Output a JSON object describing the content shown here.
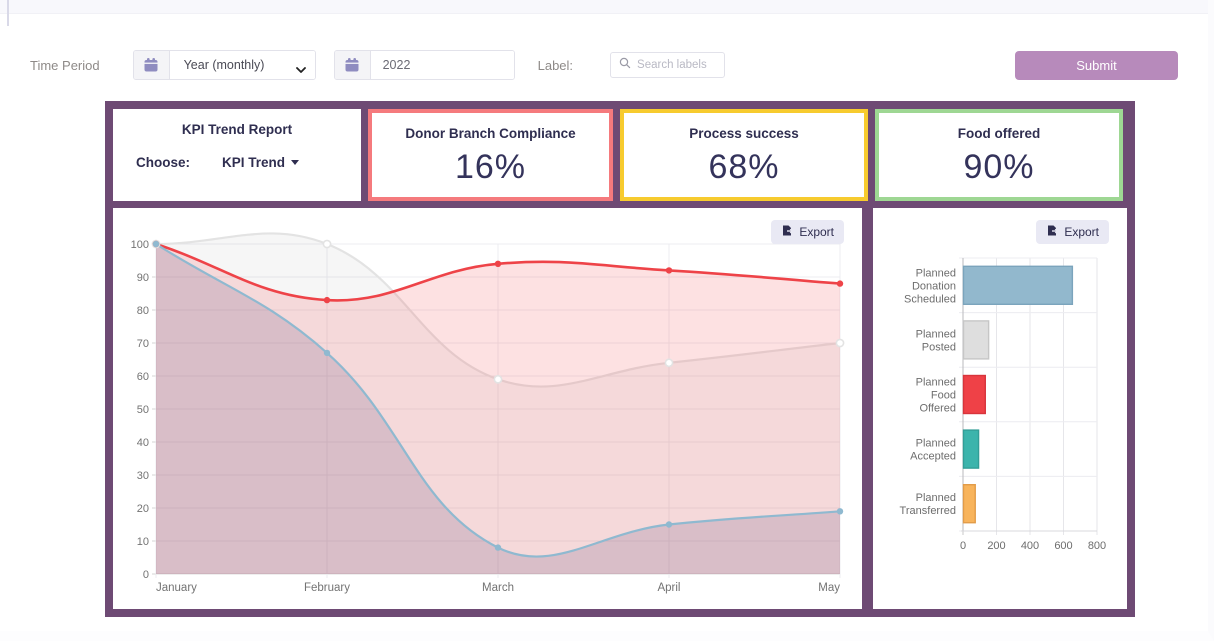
{
  "toolbar": {
    "time_period_label": "Time Period",
    "period_select": {
      "value": "Year (monthly)"
    },
    "year_input": {
      "value": "2022"
    },
    "label_text": "Label:",
    "search": {
      "placeholder": "Search labels"
    },
    "submit_label": "Submit"
  },
  "kpi": {
    "report_card": {
      "title": "KPI Trend Report",
      "choose_label": "Choose:",
      "dropdown_label": "KPI Trend"
    },
    "cards": [
      {
        "title": "Donor Branch Compliance",
        "value": "16%",
        "border_color": "#f57a7d"
      },
      {
        "title": "Process success",
        "value": "68%",
        "border_color": "#f7cb2e"
      },
      {
        "title": "Food offered",
        "value": "90%",
        "border_color": "#9ed793"
      }
    ]
  },
  "export_label": "Export",
  "colors": {
    "container": "#6e4a74",
    "submit_button": "#b78abb",
    "export_button_bg": "#e9e9f4"
  },
  "chart_data": [
    {
      "type": "line",
      "x": [
        "January",
        "February",
        "March",
        "April",
        "May"
      ],
      "series": [
        {
          "name": "gray-series",
          "color": "#e3e3e3",
          "fill": "rgba(130,130,130,0.07)",
          "point": "hollow",
          "values": [
            100,
            100,
            59,
            64,
            70
          ]
        },
        {
          "name": "red-series",
          "color": "#ee4348",
          "fill": "rgba(244,67,74,0.16)",
          "point": "solid",
          "values": [
            100,
            83,
            94,
            92,
            88
          ]
        },
        {
          "name": "blue-series",
          "color": "#8fb9d0",
          "fill": "rgba(106,86,128,0.20)",
          "point": "solid",
          "values": [
            100,
            67,
            8,
            15,
            19
          ]
        }
      ],
      "ylim": [
        0,
        100
      ],
      "ytick_step": 10,
      "grid": true,
      "legend": "none"
    },
    {
      "type": "bar",
      "orientation": "horizontal",
      "categories": [
        "Planned Donation Scheduled",
        "Planned Posted",
        "Planned Food Offered",
        "Planned Accepted",
        "Planned Transferred"
      ],
      "values": [
        650,
        150,
        130,
        90,
        70
      ],
      "colors": [
        "#92b8cd",
        "#dedede",
        "#ef4147",
        "#3cb4ac",
        "#f8b45c"
      ],
      "border_colors": [
        "#7ba4bc",
        "#c6c6c6",
        "#d8343b",
        "#329e97",
        "#e29c49"
      ],
      "xlim": [
        0,
        800
      ],
      "xticks": [
        0,
        200,
        400,
        600,
        800
      ],
      "grid": true,
      "legend": "none"
    }
  ]
}
